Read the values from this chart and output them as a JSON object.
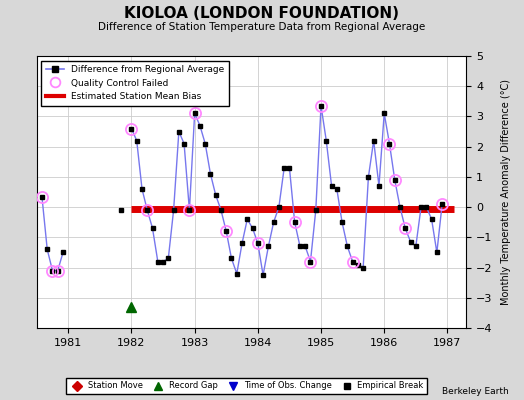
{
  "title": "KIOLOA (LONDON FOUNDATION)",
  "subtitle": "Difference of Station Temperature Data from Regional Average",
  "ylabel": "Monthly Temperature Anomaly Difference (°C)",
  "ylim": [
    -4,
    5
  ],
  "xlim": [
    1980.5,
    1987.3
  ],
  "bias": -0.05,
  "background_color": "#d8d8d8",
  "plot_bg_color": "#ffffff",
  "x_ticks": [
    1981,
    1982,
    1983,
    1984,
    1985,
    1986,
    1987
  ],
  "y_ticks": [
    -4,
    -3,
    -2,
    -1,
    0,
    1,
    2,
    3,
    4,
    5
  ],
  "seg1_x": [
    1980.583,
    1980.667,
    1980.75,
    1980.833,
    1980.917
  ],
  "seg1_y": [
    0.35,
    -1.4,
    -2.1,
    -2.1,
    -1.5
  ],
  "seg2_x": [
    1981.833
  ],
  "seg2_y": [
    -0.1
  ],
  "seg3_x": [
    1982.0,
    1982.083,
    1982.167,
    1982.25,
    1982.333,
    1982.417,
    1982.5,
    1982.583,
    1982.667,
    1982.75,
    1982.833,
    1982.917,
    1983.0,
    1983.083,
    1983.167,
    1983.25,
    1983.333,
    1983.417,
    1983.5,
    1983.583,
    1983.667,
    1983.75,
    1983.833,
    1983.917,
    1984.0,
    1984.083,
    1984.167,
    1984.25,
    1984.333,
    1984.417,
    1984.5,
    1984.583,
    1984.667,
    1984.75,
    1984.833,
    1984.917,
    1985.0,
    1985.083,
    1985.167,
    1985.25,
    1985.333,
    1985.417,
    1985.5,
    1985.583,
    1985.667,
    1985.75,
    1985.833,
    1985.917,
    1986.0,
    1986.083,
    1986.167,
    1986.25,
    1986.333,
    1986.417,
    1986.5,
    1986.583,
    1986.667,
    1986.75,
    1986.833,
    1986.917
  ],
  "seg3_y": [
    2.6,
    2.2,
    0.6,
    -0.1,
    -0.7,
    -1.8,
    -1.8,
    -1.7,
    -0.1,
    2.5,
    2.1,
    -0.1,
    3.1,
    2.7,
    2.1,
    1.1,
    0.4,
    -0.1,
    -0.8,
    -1.7,
    -2.2,
    -1.2,
    -0.4,
    -0.7,
    -1.2,
    -2.25,
    -1.3,
    -0.5,
    0.0,
    1.3,
    1.3,
    -0.5,
    -1.3,
    -1.3,
    -1.8,
    -0.1,
    3.35,
    2.2,
    0.7,
    0.6,
    -0.5,
    -1.3,
    -1.8,
    -1.9,
    -2.0,
    1.0,
    2.2,
    0.7,
    3.1,
    2.1,
    0.9,
    0.0,
    -0.7,
    -1.15,
    -1.3,
    0.0,
    0.0,
    -0.4,
    -1.5,
    0.1
  ],
  "qc_fail_x": [
    1980.583,
    1980.75,
    1980.833,
    1982.0,
    1982.25,
    1982.917,
    1983.0,
    1983.5,
    1984.0,
    1984.583,
    1984.833,
    1985.0,
    1985.5,
    1986.083,
    1986.167,
    1986.333,
    1986.917
  ],
  "qc_fail_y": [
    0.35,
    -2.1,
    -2.1,
    2.6,
    -0.1,
    -0.1,
    3.1,
    -0.8,
    -1.2,
    -0.5,
    -1.8,
    3.35,
    -1.8,
    2.1,
    0.9,
    -0.7,
    0.1
  ],
  "bias_x_start": 1982.0,
  "bias_x_end": 1987.1,
  "record_gap_x": 1982.0,
  "record_gap_y": -3.3,
  "line_color": "#7777ee",
  "dot_color": "#000000",
  "qc_color": "#ff88ff",
  "bias_color": "#dd0000",
  "berkeley_earth_text": "Berkeley Earth"
}
